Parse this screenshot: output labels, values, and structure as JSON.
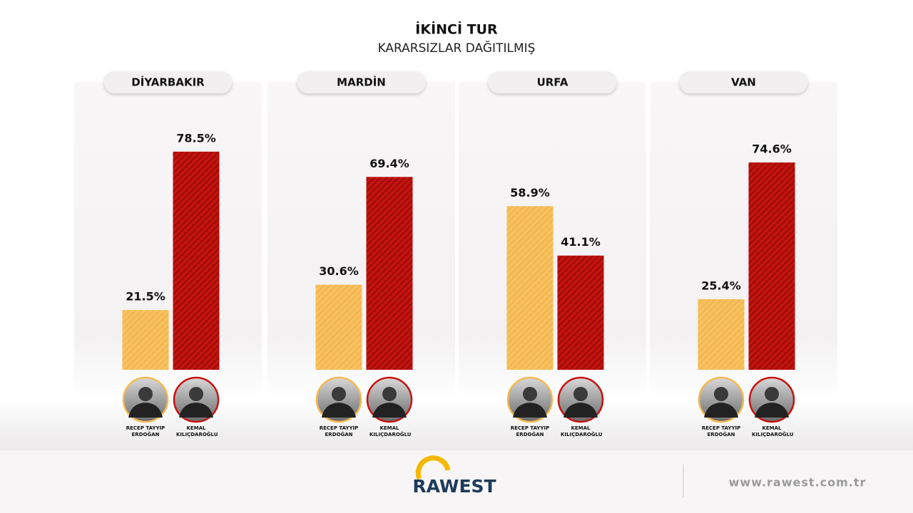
{
  "title": "İKİNCİ TUR",
  "subtitle": "KARARSIZLAR DAĞITILMIŞ",
  "chart_data": [
    {
      "type": "bar",
      "title": "DİYARBAKIR",
      "categories": [
        "RECEP TAYYİP ERDOĞAN",
        "KEMAL KILIÇDAROĞLU"
      ],
      "values": [
        21.5,
        78.5
      ],
      "value_labels": [
        "21.5%",
        "78.5%"
      ],
      "colors": [
        "#f5b94f",
        "#c8120e"
      ]
    },
    {
      "type": "bar",
      "title": "MARDİN",
      "categories": [
        "RECEP TAYYİP ERDOĞAN",
        "KEMAL KILIÇDAROĞLU"
      ],
      "values": [
        30.6,
        69.4
      ],
      "value_labels": [
        "30.6%",
        "69.4%"
      ],
      "colors": [
        "#f5b94f",
        "#c8120e"
      ]
    },
    {
      "type": "bar",
      "title": "URFA",
      "categories": [
        "RECEP TAYYİP ERDOĞAN",
        "KEMAL KILIÇDAROĞLU"
      ],
      "values": [
        58.9,
        41.1
      ],
      "value_labels": [
        "58.9%",
        "41.1%"
      ],
      "colors": [
        "#f5b94f",
        "#c8120e"
      ]
    },
    {
      "type": "bar",
      "title": "VAN",
      "categories": [
        "RECEP TAYYİP ERDOĞAN",
        "KEMAL KILIÇDAROĞLU"
      ],
      "values": [
        25.4,
        74.6
      ],
      "value_labels": [
        "25.4%",
        "74.6%"
      ],
      "colors": [
        "#f5b94f",
        "#c8120e"
      ]
    }
  ],
  "footer": {
    "logo": "RAWEST",
    "url": "www.rawest.com.tr"
  }
}
